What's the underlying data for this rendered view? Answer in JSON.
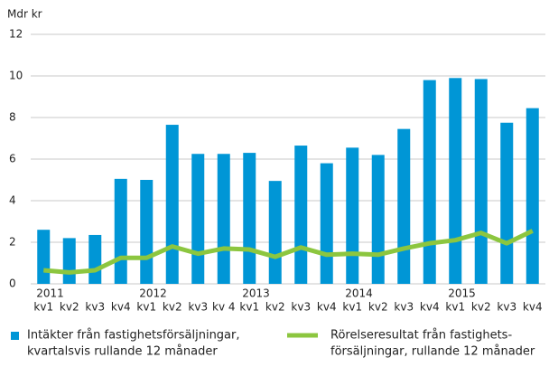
{
  "chart_data": {
    "type": "bar",
    "ylabel": "Mdr kr",
    "categories": [
      "kv1",
      "kv2",
      "kv3",
      "kv4",
      "kv1",
      "kv2",
      "kv3",
      "kv 4",
      "kv1",
      "kv2",
      "kv3",
      "kv4",
      "kv1",
      "kv2",
      "kv3",
      "kv4",
      "kv1",
      "kv2",
      "kv3",
      "kv4"
    ],
    "years": [
      "2011",
      null,
      null,
      null,
      "2012",
      null,
      null,
      null,
      "2013",
      null,
      null,
      null,
      "2014",
      null,
      null,
      null,
      "2015",
      null,
      null,
      null
    ],
    "series": [
      {
        "name": [
          "Intäkter från fastighetsförsäljningar,",
          "kvartalsvis rullande 12 månader"
        ],
        "type": "bar",
        "color": "#0096d6",
        "values": [
          2.6,
          2.2,
          2.35,
          5.05,
          5.0,
          7.65,
          6.25,
          6.25,
          6.3,
          4.95,
          6.65,
          5.8,
          6.55,
          6.2,
          7.45,
          9.8,
          9.9,
          9.85,
          7.75,
          8.45
        ]
      },
      {
        "name": [
          "Rörelseresultat från fastighets-",
          "försäljningar, rullande 12 månader"
        ],
        "type": "line",
        "color": "#8cc63f",
        "values": [
          0.65,
          0.55,
          0.65,
          1.25,
          1.25,
          1.8,
          1.45,
          1.7,
          1.65,
          1.3,
          1.75,
          1.4,
          1.45,
          1.4,
          1.7,
          1.95,
          2.1,
          2.45,
          1.95,
          2.55
        ]
      }
    ],
    "ylim": [
      0,
      12
    ],
    "yticks": [
      0,
      2,
      4,
      6,
      8,
      10,
      12
    ],
    "grid": true
  }
}
